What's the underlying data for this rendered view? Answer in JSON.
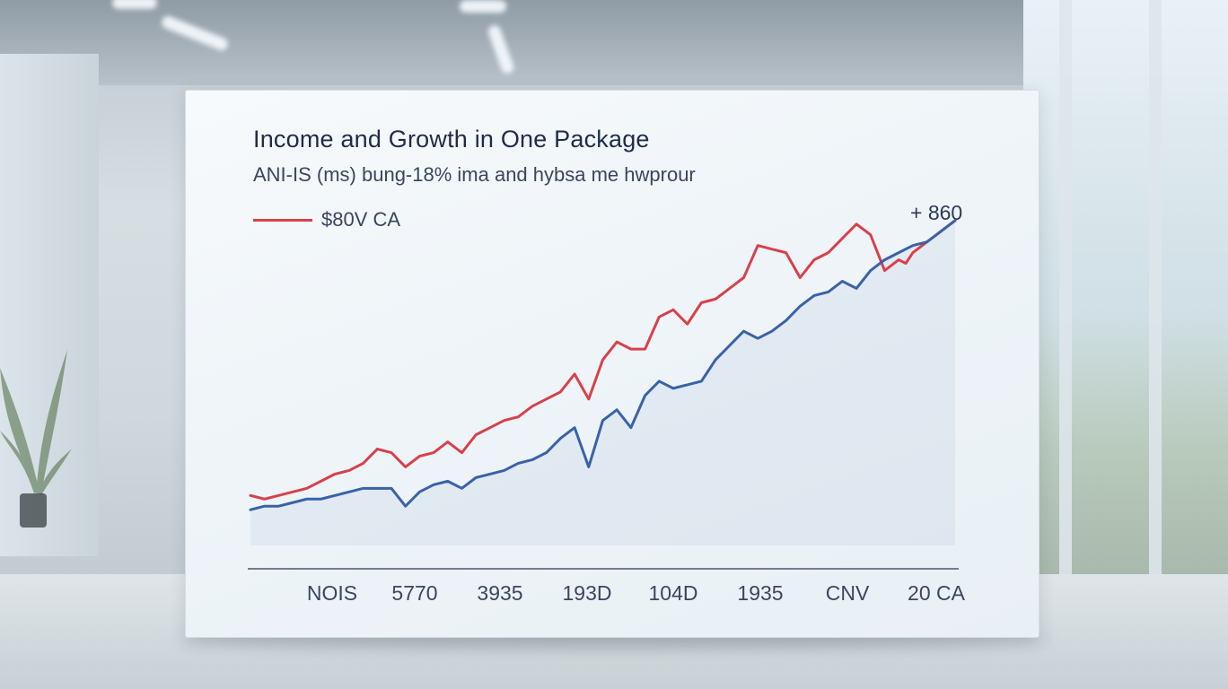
{
  "colors": {
    "series_red": "#d8404b",
    "series_blue": "#3a62a8",
    "text_dark": "#1f2c4a",
    "axis": "#4a5670"
  },
  "chart_data": {
    "type": "line",
    "title": "Income and Growth in One Package",
    "subtitle": "ANI-IS (ms) bung-18% ima and hybsa me hwprour",
    "xlabel": "",
    "ylabel": "",
    "x_ticks": [
      "NOIS",
      "5770",
      "3935",
      "193D",
      "104D",
      "1935",
      "CNV",
      "20 CA"
    ],
    "xlim": [
      0,
      100
    ],
    "ylim": [
      0,
      100
    ],
    "grid": false,
    "legend_position": "top-left",
    "annotations": [
      {
        "text": "+ 860",
        "series": 0,
        "at": "end"
      }
    ],
    "series": [
      {
        "name": "$80V CA",
        "color": "#d8404b",
        "x": [
          0,
          2,
          4,
          6,
          8,
          10,
          12,
          14,
          16,
          18,
          20,
          22,
          24,
          26,
          28,
          30,
          32,
          34,
          36,
          38,
          40,
          42,
          44,
          46,
          48,
          50,
          52,
          54,
          56,
          58,
          60,
          62,
          64,
          66,
          68,
          70,
          72,
          74,
          76,
          78,
          80,
          82,
          84,
          86,
          88,
          90,
          92,
          93,
          94,
          96,
          98,
          100
        ],
        "values": [
          14,
          13,
          14,
          15,
          16,
          18,
          20,
          21,
          23,
          27,
          26,
          22,
          25,
          26,
          29,
          26,
          31,
          33,
          35,
          36,
          39,
          41,
          43,
          48,
          41,
          52,
          57,
          55,
          55,
          64,
          66,
          62,
          68,
          69,
          72,
          75,
          84,
          83,
          82,
          75,
          80,
          82,
          86,
          90,
          87,
          77,
          80,
          79,
          82,
          85,
          88,
          91
        ]
      },
      {
        "name": "",
        "color": "#3a62a8",
        "x": [
          0,
          2,
          4,
          6,
          8,
          10,
          12,
          14,
          16,
          18,
          20,
          22,
          24,
          26,
          28,
          30,
          32,
          34,
          36,
          38,
          40,
          42,
          44,
          46,
          48,
          50,
          52,
          54,
          56,
          58,
          60,
          62,
          64,
          66,
          68,
          70,
          72,
          74,
          76,
          78,
          80,
          82,
          84,
          86,
          88,
          90,
          92,
          94,
          96,
          98,
          100
        ],
        "values": [
          10,
          11,
          11,
          12,
          13,
          13,
          14,
          15,
          16,
          16,
          16,
          11,
          15,
          17,
          18,
          16,
          19,
          20,
          21,
          23,
          24,
          26,
          30,
          33,
          22,
          35,
          38,
          33,
          42,
          46,
          44,
          45,
          46,
          52,
          56,
          60,
          58,
          60,
          63,
          67,
          70,
          71,
          74,
          72,
          77,
          80,
          82,
          84,
          85,
          88,
          91
        ]
      }
    ]
  }
}
